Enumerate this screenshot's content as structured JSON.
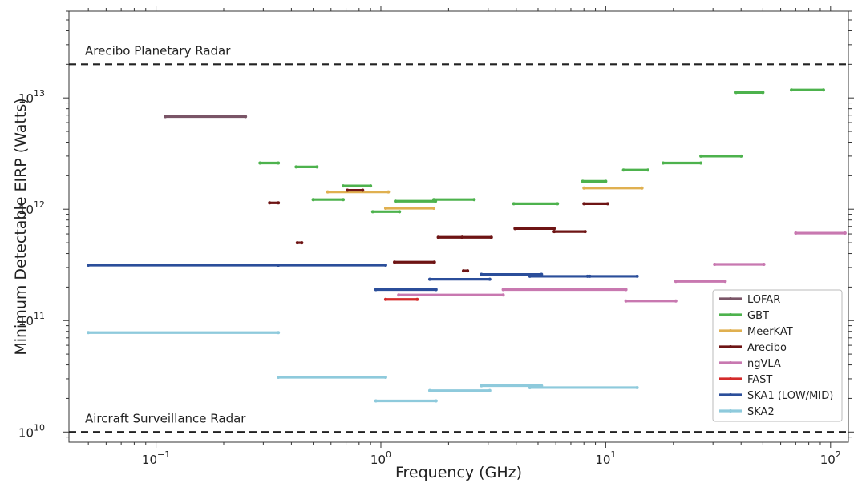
{
  "chart_data": {
    "type": "line",
    "xlabel": "Frequency (GHz)",
    "ylabel": "Minimum Detectable EIRP (Watts)",
    "xscale": "log",
    "yscale": "log",
    "xlim": [
      0.041,
      120
    ],
    "ylim": [
      8100000000.0,
      60000000000000.0
    ],
    "x_ticks": [
      {
        "value": 0.1,
        "base": "10",
        "exp": "−1"
      },
      {
        "value": 1,
        "base": "10",
        "exp": "0"
      },
      {
        "value": 10,
        "base": "10",
        "exp": "1"
      },
      {
        "value": 100,
        "base": "10",
        "exp": "2"
      }
    ],
    "y_ticks": [
      {
        "value": 10000000000.0,
        "base": "10",
        "exp": "10"
      },
      {
        "value": 100000000000.0,
        "base": "10",
        "exp": "11"
      },
      {
        "value": 1000000000000.0,
        "base": "10",
        "exp": "12"
      },
      {
        "value": 10000000000000.0,
        "base": "10",
        "exp": "13"
      }
    ],
    "reference_lines": [
      {
        "label": "Arecibo Planetary Radar",
        "y": 20000000000000.0
      },
      {
        "label": "Aircraft Surveillance Radar",
        "y": 10000000000.0
      }
    ],
    "legend_position": "lower right",
    "series": [
      {
        "name": "LOFAR",
        "color": "#7a5567",
        "segments": [
          [
            0.11,
            0.25,
            6800000000000.0
          ]
        ]
      },
      {
        "name": "GBT",
        "color": "#4db24d",
        "segments": [
          [
            0.29,
            0.35,
            2600000000000.0
          ],
          [
            0.42,
            0.52,
            2400000000000.0
          ],
          [
            0.5,
            0.68,
            1220000000000.0
          ],
          [
            0.68,
            0.9,
            1620000000000.0
          ],
          [
            0.92,
            1.21,
            950000000000.0
          ],
          [
            1.16,
            1.75,
            1180000000000.0
          ],
          [
            1.72,
            2.6,
            1220000000000.0
          ],
          [
            3.9,
            6.1,
            1120000000000.0
          ],
          [
            7.9,
            10.0,
            1780000000000.0
          ],
          [
            12.0,
            15.4,
            2250000000000.0
          ],
          [
            18.0,
            26.5,
            2600000000000.0
          ],
          [
            26.5,
            40.0,
            3000000000000.0
          ],
          [
            38.0,
            50.0,
            11200000000000.0
          ],
          [
            67.0,
            93.0,
            11800000000000.0
          ]
        ]
      },
      {
        "name": "MeerKAT",
        "color": "#e0b050",
        "segments": [
          [
            0.58,
            1.08,
            1430000000000.0
          ],
          [
            1.05,
            1.72,
            1020000000000.0
          ],
          [
            8.0,
            14.5,
            1550000000000.0
          ]
        ]
      },
      {
        "name": "Arecibo",
        "color": "#6e1414",
        "segments": [
          [
            0.32,
            0.35,
            1140000000000.0
          ],
          [
            0.425,
            0.445,
            500000000000.0
          ],
          [
            0.71,
            0.83,
            1480000000000.0
          ],
          [
            1.15,
            1.73,
            335000000000.0
          ],
          [
            1.8,
            2.3,
            560000000000.0
          ],
          [
            2.3,
            3.1,
            560000000000.0
          ],
          [
            2.33,
            2.43,
            280000000000.0
          ],
          [
            3.95,
            5.9,
            670000000000.0
          ],
          [
            5.9,
            8.1,
            630000000000.0
          ],
          [
            8.0,
            10.2,
            1120000000000.0
          ]
        ]
      },
      {
        "name": "ngVLA",
        "color": "#c878b0",
        "segments": [
          [
            1.2,
            3.5,
            170000000000.0
          ],
          [
            3.5,
            12.3,
            190000000000.0
          ],
          [
            12.3,
            20.5,
            150000000000.0
          ],
          [
            20.5,
            34.0,
            225000000000.0
          ],
          [
            30.5,
            50.5,
            320000000000.0
          ],
          [
            70.0,
            116.0,
            610000000000.0
          ]
        ]
      },
      {
        "name": "FAST",
        "color": "#d42a2a",
        "segments": [
          [
            1.05,
            1.45,
            155000000000.0
          ]
        ]
      },
      {
        "name": "SKA1 (LOW/MID)",
        "color": "#2b4e9a",
        "segments": [
          [
            0.05,
            0.35,
            315000000000.0
          ],
          [
            0.35,
            1.05,
            315000000000.0
          ],
          [
            0.95,
            1.76,
            190000000000.0
          ],
          [
            1.65,
            3.05,
            235000000000.0
          ],
          [
            2.8,
            5.18,
            260000000000.0
          ],
          [
            4.6,
            8.5,
            250000000000.0
          ],
          [
            8.3,
            13.8,
            250000000000.0
          ]
        ]
      },
      {
        "name": "SKA2",
        "color": "#8ecadc",
        "segments": [
          [
            0.05,
            0.35,
            78000000000.0
          ],
          [
            0.35,
            1.05,
            31000000000.0
          ],
          [
            0.95,
            1.76,
            19000000000.0
          ],
          [
            1.65,
            3.05,
            23500000000.0
          ],
          [
            2.8,
            5.18,
            26000000000.0
          ],
          [
            4.6,
            13.8,
            25000000000.0
          ]
        ]
      }
    ]
  }
}
